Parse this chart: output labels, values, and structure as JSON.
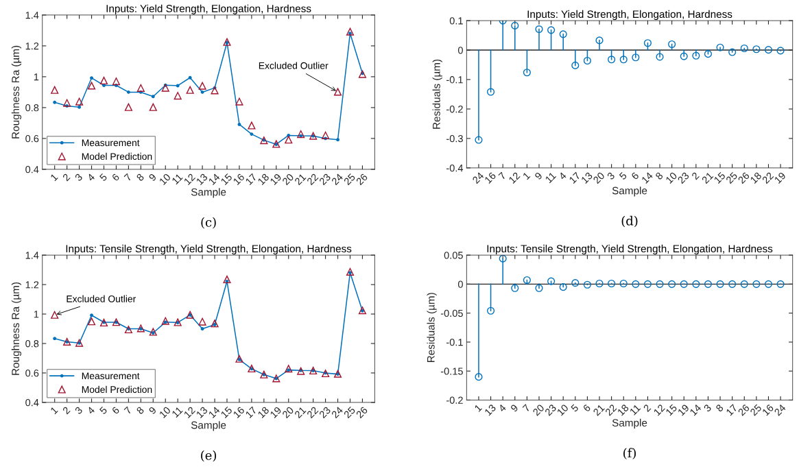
{
  "chart_data": [
    {
      "type": "line",
      "title": "Inputs: Yield Strength, Elongation, Hardness",
      "xlabel": "Sample",
      "ylabel": "Roughness Ra (µm)",
      "categories": [
        "1",
        "2",
        "3",
        "4",
        "5",
        "6",
        "7",
        "8",
        "9",
        "10",
        "11",
        "12",
        "13",
        "14",
        "15",
        "16",
        "17",
        "18",
        "19",
        "20",
        "21",
        "22",
        "23",
        "24",
        "25",
        "26"
      ],
      "series": [
        {
          "name": "Measurement",
          "type": "line",
          "marker": "circle",
          "color": "#0072bd",
          "values": [
            0.834,
            0.811,
            0.803,
            0.992,
            0.944,
            0.944,
            0.9,
            0.9,
            0.872,
            0.945,
            0.942,
            0.994,
            0.9,
            0.928,
            1.222,
            0.691,
            0.628,
            0.589,
            0.562,
            0.62,
            0.617,
            0.616,
            0.6,
            0.592,
            1.281,
            1.022
          ]
        },
        {
          "name": "Model Prediction",
          "type": "scatter",
          "marker": "triangle",
          "color": "#a2142f",
          "values": [
            0.914,
            0.83,
            0.839,
            0.942,
            0.975,
            0.97,
            0.803,
            0.927,
            0.803,
            0.928,
            0.877,
            0.914,
            0.941,
            0.911,
            1.225,
            0.839,
            0.684,
            0.588,
            0.564,
            0.592,
            0.628,
            0.617,
            0.62,
            0.902,
            1.292,
            1.017
          ]
        }
      ],
      "ylim": [
        0.4,
        1.4
      ],
      "yticks": [
        0.4,
        0.6,
        0.8,
        1,
        1.2,
        1.4
      ],
      "legend": "bottom left",
      "annotations": [
        {
          "text": "Excluded Outlier",
          "x": "24",
          "y": 0.902
        },
        "(c)"
      ]
    },
    {
      "type": "lollipop",
      "title": "Inputs: Yield Strength, Elongation, Hardness",
      "xlabel": "Sample",
      "ylabel": "Residuals (µm)",
      "categories": [
        "24",
        "16",
        "7",
        "12",
        "1",
        "9",
        "11",
        "4",
        "17",
        "13",
        "20",
        "3",
        "5",
        "6",
        "14",
        "8",
        "10",
        "23",
        "2",
        "21",
        "15",
        "25",
        "26",
        "18",
        "22",
        "19"
      ],
      "series": [
        {
          "color": "#0072bd",
          "marker": "circle",
          "values": [
            -0.305,
            -0.142,
            0.1,
            0.083,
            -0.076,
            0.071,
            0.068,
            0.054,
            -0.052,
            -0.036,
            0.033,
            -0.032,
            -0.032,
            -0.025,
            0.024,
            -0.023,
            0.02,
            -0.021,
            -0.019,
            -0.013,
            0.009,
            -0.007,
            0.006,
            0.003,
            0.001,
            -0.002
          ]
        }
      ],
      "ylim": [
        -0.4,
        0.1
      ],
      "yticks": [
        -0.4,
        -0.3,
        -0.2,
        -0.1,
        0,
        0.1
      ],
      "ref_lines": [
        {
          "axis": "y",
          "value": 0,
          "color": "#262626"
        }
      ],
      "annotations": [
        "(d)"
      ]
    },
    {
      "type": "line",
      "title": "Inputs: Tensile Strength, Yield Strength, Elongation, Hardness",
      "xlabel": "Sample",
      "ylabel": "Roughness Ra (µm)",
      "categories": [
        "1",
        "2",
        "3",
        "4",
        "5",
        "6",
        "7",
        "8",
        "9",
        "10",
        "11",
        "12",
        "13",
        "14",
        "15",
        "16",
        "17",
        "18",
        "19",
        "20",
        "21",
        "22",
        "23",
        "24",
        "25",
        "26"
      ],
      "series": [
        {
          "name": "Measurement",
          "type": "line",
          "marker": "circle",
          "color": "#0072bd",
          "values": [
            0.834,
            0.811,
            0.803,
            0.992,
            0.944,
            0.944,
            0.9,
            0.9,
            0.872,
            0.945,
            0.942,
            0.994,
            0.9,
            0.928,
            1.222,
            0.691,
            0.628,
            0.589,
            0.562,
            0.62,
            0.617,
            0.616,
            0.6,
            0.592,
            1.281,
            1.022
          ]
        },
        {
          "name": "Model Prediction",
          "type": "scatter",
          "marker": "triangle",
          "color": "#a2142f",
          "values": [
            0.994,
            0.812,
            0.804,
            0.95,
            0.942,
            0.945,
            0.895,
            0.903,
            0.879,
            0.953,
            0.944,
            0.995,
            0.948,
            0.936,
            1.235,
            0.696,
            0.63,
            0.589,
            0.563,
            0.629,
            0.613,
            0.616,
            0.597,
            0.594,
            1.287,
            1.025
          ]
        }
      ],
      "ylim": [
        0.4,
        1.4
      ],
      "yticks": [
        0.4,
        0.6,
        0.8,
        1,
        1.2,
        1.4
      ],
      "legend": "bottom left",
      "annotations": [
        {
          "text": "Excluded Outlier",
          "x": "1",
          "y": 0.994
        },
        "(e)"
      ]
    },
    {
      "type": "lollipop",
      "title": "Inputs: Tensile Strength, Yield Strength, Elongation, Hardness",
      "xlabel": "Sample",
      "ylabel": "Residuals (µm)",
      "categories": [
        "1",
        "13",
        "4",
        "9",
        "7",
        "20",
        "23",
        "10",
        "5",
        "6",
        "21",
        "22",
        "18",
        "11",
        "2",
        "12",
        "15",
        "19",
        "14",
        "3",
        "8",
        "17",
        "26",
        "25",
        "16",
        "24"
      ],
      "series": [
        {
          "color": "#0072bd",
          "marker": "circle",
          "values": [
            -0.16,
            -0.046,
            0.044,
            -0.007,
            0.007,
            -0.007,
            0.005,
            -0.005,
            0.002,
            -0.001,
            0.001,
            0.001,
            0.001,
            0,
            0,
            0,
            0,
            0,
            0,
            0,
            0,
            0,
            0,
            0,
            0,
            0
          ]
        }
      ],
      "ylim": [
        -0.2,
        0.05
      ],
      "yticks": [
        -0.2,
        -0.15,
        -0.1,
        -0.05,
        0,
        0.05
      ],
      "ref_lines": [
        {
          "axis": "y",
          "value": 0,
          "color": "#262626"
        }
      ],
      "annotations": [
        "(f)"
      ]
    }
  ]
}
